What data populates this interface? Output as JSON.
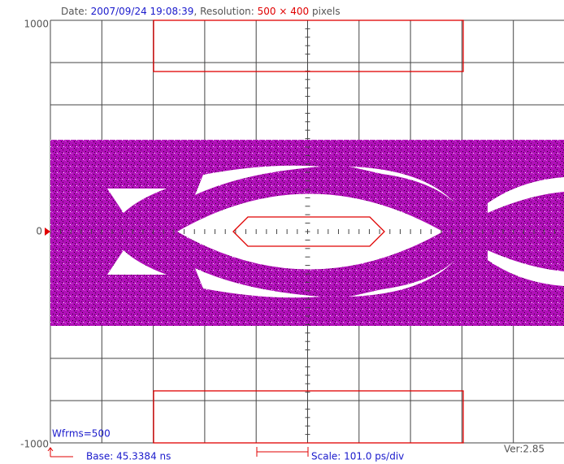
{
  "header": {
    "date_label": "Date:",
    "date": "2007/09/24 19:08:39",
    "resolution_label": ", Resolution:",
    "resolution": "500 × 400",
    "resolution_unit": "pixels"
  },
  "axis": {
    "y_max": "1000",
    "y_zero": "0",
    "y_min": "-1000"
  },
  "footer": {
    "waveforms": "Wfrms=500",
    "base": "Base: 45.3384 ns",
    "scale": "Scale: 101.0 ps/div",
    "version": "Ver:2.85"
  }
}
